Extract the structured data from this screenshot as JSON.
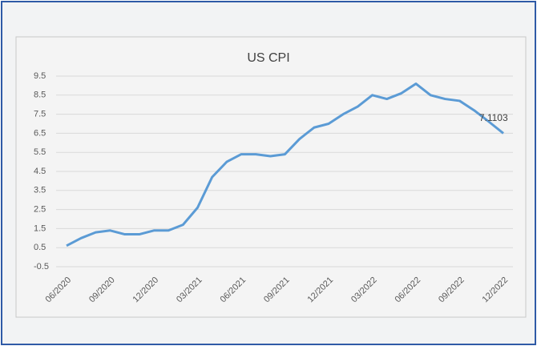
{
  "chart_data": {
    "type": "line",
    "title": "US CPI",
    "categories": [
      "06/2020",
      null,
      null,
      "09/2020",
      null,
      null,
      "12/2020",
      null,
      null,
      "03/2021",
      null,
      null,
      "06/2021",
      null,
      null,
      "09/2021",
      null,
      null,
      "12/2021",
      null,
      null,
      "03/2022",
      null,
      null,
      "06/2022",
      null,
      null,
      "09/2022",
      null,
      null,
      "12/2022"
    ],
    "series": [
      {
        "name": "US CPI",
        "color": "#5b9bd5",
        "values": [
          0.6,
          1.0,
          1.3,
          1.4,
          1.2,
          1.2,
          1.4,
          1.4,
          1.7,
          2.6,
          4.2,
          5.0,
          5.4,
          5.4,
          5.3,
          5.4,
          6.2,
          6.8,
          7.0,
          7.5,
          7.9,
          8.5,
          8.3,
          8.6,
          9.1,
          8.5,
          8.3,
          8.2,
          7.7,
          7.1103,
          6.5
        ],
        "value_labels": [
          null,
          null,
          null,
          null,
          null,
          null,
          null,
          null,
          null,
          null,
          null,
          null,
          null,
          null,
          null,
          null,
          null,
          null,
          null,
          null,
          null,
          null,
          null,
          null,
          null,
          null,
          null,
          null,
          null,
          "7.1103",
          null
        ]
      }
    ],
    "ylim": [
      -0.5,
      9.5
    ],
    "yticks": [
      -0.5,
      0.5,
      1.5,
      2.5,
      3.5,
      4.5,
      5.5,
      6.5,
      7.5,
      8.5,
      9.5
    ],
    "grid": true
  }
}
